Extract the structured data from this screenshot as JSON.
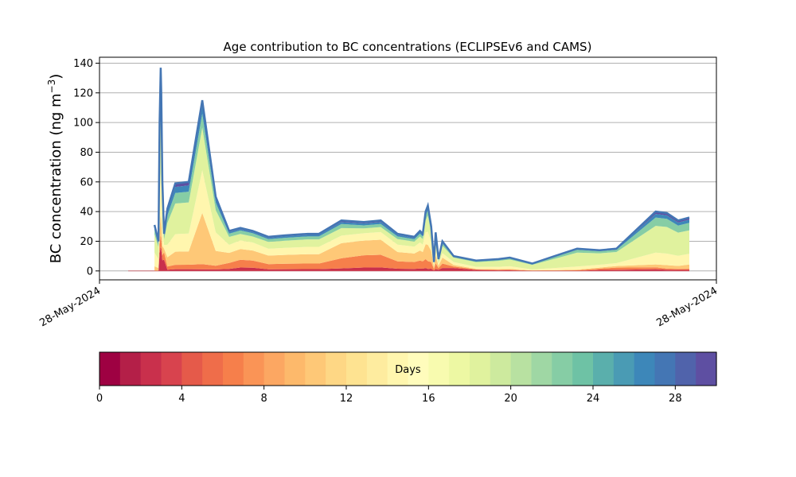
{
  "chart_data": {
    "type": "area",
    "stacked": true,
    "title": "Age contribution to BC concentrations (ECLIPSEv6 and CAMS)",
    "ylabel": "BC concentration (ng m",
    "ylabel_superscript": "−3",
    "ylabel_close": ")",
    "xlabel": "",
    "ylim": [
      -6,
      144
    ],
    "y_ticks": [
      0,
      20,
      40,
      60,
      80,
      100,
      120,
      140
    ],
    "x_tick_labels": [
      "28-May-2024",
      "28-May-2024"
    ],
    "grid": "horizontal",
    "x_range": [
      0,
      1
    ],
    "x": [
      0.047,
      0.054,
      0.056,
      0.058,
      0.059,
      0.061,
      0.064,
      0.07,
      0.084,
      0.108,
      0.132,
      0.156,
      0.18,
      0.2,
      0.222,
      0.25,
      0.28,
      0.32,
      0.32,
      0.34,
      0.38,
      0.42,
      0.45,
      0.48,
      0.51,
      0.52,
      0.525,
      0.53,
      0.534,
      0.54,
      0.545,
      0.548,
      0.553,
      0.56,
      0.58,
      0.62,
      0.66,
      0.68,
      0.72,
      0.76,
      0.8,
      0.84,
      0.87,
      0.94,
      0.96,
      0.98,
      1.0
    ],
    "total": [
      31,
      20,
      100,
      137,
      120,
      60,
      25,
      42,
      59,
      60,
      115,
      50,
      27,
      29,
      27,
      23,
      24,
      25,
      25,
      25,
      34,
      33,
      34,
      25,
      23,
      27,
      25,
      40,
      44,
      30,
      6,
      26,
      8,
      20,
      10,
      7,
      8,
      9,
      5,
      10,
      15,
      14,
      15,
      40,
      39,
      34,
      36
    ],
    "age_fractions": [
      {
        "days": 2,
        "values": [
          0,
          0,
          0.12,
          0.12,
          0.12,
          0.12,
          0.3,
          0.02,
          0.02,
          0.02,
          0.01,
          0.02,
          0.05,
          0.08,
          0.08,
          0.05,
          0.05,
          0.05,
          0.05,
          0.05,
          0.05,
          0.07,
          0.07,
          0.06,
          0.06,
          0.06,
          0.06,
          0.05,
          0.03,
          0.05,
          0.05,
          0.05,
          0.1,
          0.1,
          0.2,
          0.1,
          0.05,
          0.05,
          0,
          0,
          0,
          0.05,
          0.05,
          0.03,
          0.02,
          0.02,
          0.02
        ]
      },
      {
        "days": 6,
        "values": [
          0,
          0,
          0.06,
          0.06,
          0.06,
          0.06,
          0.2,
          0.05,
          0.05,
          0.05,
          0.03,
          0.05,
          0.15,
          0.18,
          0.18,
          0.15,
          0.15,
          0.15,
          0.15,
          0.15,
          0.2,
          0.25,
          0.25,
          0.2,
          0.2,
          0.2,
          0.2,
          0.15,
          0.12,
          0.15,
          0.15,
          0.15,
          0.15,
          0.15,
          0.1,
          0.05,
          0.05,
          0.05,
          0.02,
          0.02,
          0.03,
          0.06,
          0.1,
          0.03,
          0.02,
          0.02,
          0.02
        ]
      },
      {
        "days": 10,
        "values": [
          0.1,
          0.1,
          0.1,
          0.1,
          0.1,
          0.1,
          0.1,
          0.15,
          0.15,
          0.15,
          0.3,
          0.2,
          0.25,
          0.25,
          0.25,
          0.25,
          0.25,
          0.25,
          0.25,
          0.25,
          0.3,
          0.3,
          0.3,
          0.25,
          0.25,
          0.25,
          0.25,
          0.25,
          0.25,
          0.25,
          0.2,
          0.2,
          0.2,
          0.2,
          0.1,
          0.05,
          0.05,
          0.05,
          0.03,
          0.03,
          0.03,
          0.05,
          0.07,
          0.05,
          0.06,
          0.06,
          0.08
        ]
      },
      {
        "days": 14,
        "values": [
          0.3,
          0.3,
          0.2,
          0.2,
          0.2,
          0.2,
          0.1,
          0.2,
          0.2,
          0.2,
          0.25,
          0.25,
          0.2,
          0.2,
          0.2,
          0.2,
          0.2,
          0.2,
          0.2,
          0.2,
          0.15,
          0.15,
          0.15,
          0.2,
          0.2,
          0.2,
          0.2,
          0.2,
          0.2,
          0.2,
          0.2,
          0.2,
          0.15,
          0.15,
          0.2,
          0.2,
          0.2,
          0.2,
          0.15,
          0.15,
          0.14,
          0.14,
          0.13,
          0.2,
          0.2,
          0.2,
          0.2
        ]
      },
      {
        "days": 18,
        "values": [
          0.4,
          0.4,
          0.3,
          0.3,
          0.3,
          0.3,
          0.15,
          0.35,
          0.35,
          0.35,
          0.25,
          0.3,
          0.2,
          0.15,
          0.15,
          0.2,
          0.2,
          0.2,
          0.2,
          0.2,
          0.15,
          0.1,
          0.1,
          0.15,
          0.15,
          0.15,
          0.15,
          0.2,
          0.25,
          0.2,
          0.25,
          0.25,
          0.25,
          0.25,
          0.3,
          0.45,
          0.5,
          0.5,
          0.62,
          0.62,
          0.62,
          0.55,
          0.5,
          0.45,
          0.46,
          0.46,
          0.44
        ]
      },
      {
        "days": 22,
        "values": [
          0.1,
          0.1,
          0.1,
          0.1,
          0.1,
          0.1,
          0.1,
          0.12,
          0.12,
          0.12,
          0.08,
          0.1,
          0.08,
          0.08,
          0.08,
          0.08,
          0.08,
          0.08,
          0.08,
          0.08,
          0.08,
          0.06,
          0.06,
          0.07,
          0.07,
          0.07,
          0.07,
          0.08,
          0.08,
          0.08,
          0.08,
          0.08,
          0.08,
          0.08,
          0.05,
          0.1,
          0.1,
          0.1,
          0.13,
          0.13,
          0.13,
          0.1,
          0.1,
          0.14,
          0.14,
          0.14,
          0.14
        ]
      },
      {
        "days": 26,
        "values": [
          0.06,
          0.06,
          0.07,
          0.07,
          0.07,
          0.07,
          0.03,
          0.07,
          0.07,
          0.07,
          0.05,
          0.05,
          0.04,
          0.03,
          0.03,
          0.04,
          0.04,
          0.04,
          0.04,
          0.04,
          0.04,
          0.04,
          0.04,
          0.04,
          0.04,
          0.04,
          0.04,
          0.04,
          0.04,
          0.04,
          0.04,
          0.04,
          0.04,
          0.04,
          0.03,
          0.03,
          0.03,
          0.03,
          0.03,
          0.03,
          0.03,
          0.03,
          0.03,
          0.06,
          0.06,
          0.06,
          0.06
        ]
      },
      {
        "days": 30,
        "values": [
          0.04,
          0.04,
          0.05,
          0.05,
          0.05,
          0.05,
          0.02,
          0.04,
          0.04,
          0.04,
          0.03,
          0.03,
          0.03,
          0.03,
          0.03,
          0.03,
          0.03,
          0.03,
          0.03,
          0.03,
          0.03,
          0.03,
          0.03,
          0.03,
          0.03,
          0.03,
          0.03,
          0.03,
          0.03,
          0.03,
          0.03,
          0.03,
          0.03,
          0.03,
          0.02,
          0.02,
          0.02,
          0.02,
          0.02,
          0.02,
          0.02,
          0.02,
          0.02,
          0.04,
          0.04,
          0.04,
          0.04
        ]
      }
    ],
    "colorbar": {
      "label": "Days",
      "range": [
        0,
        30
      ],
      "ticks": [
        0,
        4,
        8,
        12,
        16,
        20,
        24,
        28
      ],
      "colors": [
        "#9e0142",
        "#b41f48",
        "#c9304c",
        "#d8434e",
        "#e55a4a",
        "#ef6d4a",
        "#f67f4b",
        "#fa9456",
        "#fca762",
        "#fdb96b",
        "#fec877",
        "#fed785",
        "#fee391",
        "#feec9f",
        "#fff6ae",
        "#fffcbc",
        "#f8fbaf",
        "#edf8a3",
        "#e0f29e",
        "#cdea9e",
        "#b8e1a1",
        "#9fd7a4",
        "#86cda5",
        "#6ec2a5",
        "#5aafac",
        "#4a9bb4",
        "#3d87b9",
        "#4476b4",
        "#5063ab",
        "#5e4fa2"
      ]
    }
  }
}
